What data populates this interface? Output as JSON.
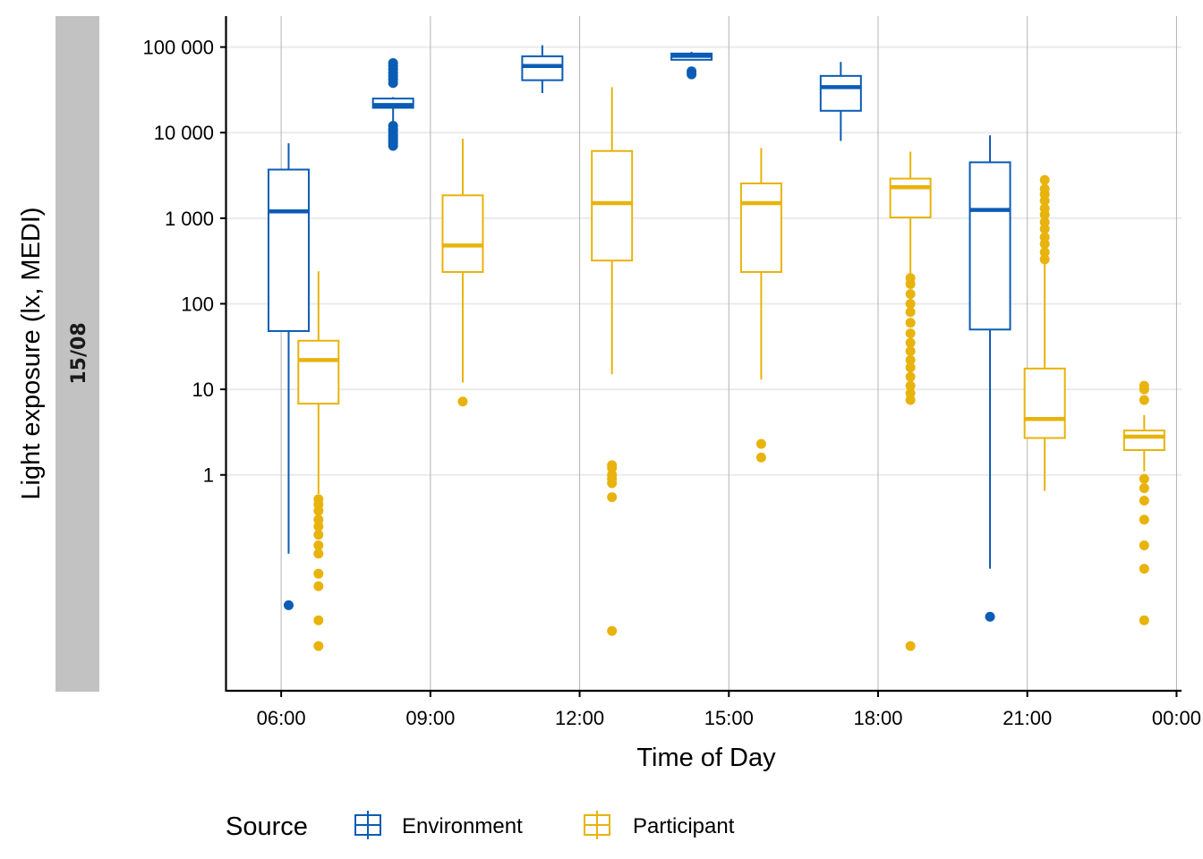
{
  "chart_data": {
    "type": "box",
    "facet_label": "15/08",
    "xlabel": "Time of Day",
    "ylabel": "Light exposure (lx, MEDI)",
    "y_scale": "log10",
    "ylim": [
      0.003,
      230000
    ],
    "y_ticks": [
      {
        "value": 1,
        "label": "1"
      },
      {
        "value": 10,
        "label": "10"
      },
      {
        "value": 100,
        "label": "100"
      },
      {
        "value": 1000,
        "label": "1 000"
      },
      {
        "value": 10000,
        "label": "10 000"
      },
      {
        "value": 100000,
        "label": "100 000"
      }
    ],
    "x_unit": "hours",
    "xlim": [
      4.9,
      24.1
    ],
    "x_ticks": [
      {
        "value": 6,
        "label": "06:00"
      },
      {
        "value": 9,
        "label": "09:00"
      },
      {
        "value": 12,
        "label": "12:00"
      },
      {
        "value": 15,
        "label": "15:00"
      },
      {
        "value": 18,
        "label": "18:00"
      },
      {
        "value": 21,
        "label": "21:00"
      },
      {
        "value": 24,
        "label": "00:00"
      }
    ],
    "legend": {
      "title": "Source",
      "position": "bottom"
    },
    "series": [
      {
        "name": "Environment",
        "color": "#0b5cb5",
        "boxes": [
          {
            "x": 6.15,
            "whisker_low": 0.12,
            "q1": 48,
            "median": 1200,
            "q3": 3700,
            "whisker_high": 7500,
            "outliers": [
              0.03
            ]
          },
          {
            "x": 8.25,
            "whisker_low": 7000,
            "q1": 19500,
            "median": 21000,
            "q3": 25000,
            "whisker_high": 26000,
            "outliers": [
              7000,
              7500,
              8000,
              8500,
              9000,
              9500,
              10500,
              11000,
              12000,
              38000,
              42000,
              46000,
              50000,
              55000,
              60000,
              65000
            ]
          },
          {
            "x": 11.25,
            "whisker_low": 29000,
            "q1": 41000,
            "median": 60000,
            "q3": 78000,
            "whisker_high": 105000,
            "outliers": []
          },
          {
            "x": 14.25,
            "whisker_low": 70000,
            "q1": 71000,
            "median": 79000,
            "q3": 84000,
            "whisker_high": 88000,
            "outliers": [
              48000,
              52000
            ]
          },
          {
            "x": 17.25,
            "whisker_low": 8000,
            "q1": 18000,
            "median": 34000,
            "q3": 46000,
            "whisker_high": 67000,
            "outliers": []
          },
          {
            "x": 20.25,
            "whisker_low": 0.08,
            "q1": 50,
            "median": 1250,
            "q3": 4500,
            "whisker_high": 9300,
            "outliers": [
              0.022
            ]
          }
        ]
      },
      {
        "name": "Participant",
        "color": "#e8b30c",
        "boxes": [
          {
            "x": 6.75,
            "whisker_low": 0.6,
            "q1": 6.8,
            "median": 22,
            "q3": 37,
            "whisker_high": 240,
            "outliers": [
              0.01,
              0.02,
              0.05,
              0.07,
              0.12,
              0.15,
              0.2,
              0.25,
              0.3,
              0.38,
              0.45,
              0.52
            ]
          },
          {
            "x": 9.65,
            "whisker_low": 12,
            "q1": 235,
            "median": 480,
            "q3": 1850,
            "whisker_high": 8500,
            "outliers": [
              7.2
            ]
          },
          {
            "x": 12.65,
            "whisker_low": 15,
            "q1": 320,
            "median": 1500,
            "q3": 6100,
            "whisker_high": 34000,
            "outliers": [
              0.015,
              0.55,
              0.8,
              0.9,
              1.0,
              1.2,
              1.3
            ]
          },
          {
            "x": 15.65,
            "whisker_low": 13,
            "q1": 235,
            "median": 1500,
            "q3": 2550,
            "whisker_high": 6600,
            "outliers": [
              1.6,
              2.3
            ]
          },
          {
            "x": 18.65,
            "whisker_low": 200,
            "q1": 1020,
            "median": 2300,
            "q3": 2900,
            "whisker_high": 6000,
            "outliers": [
              0.01,
              7.5,
              9,
              11,
              14,
              18,
              22,
              28,
              35,
              45,
              60,
              80,
              100,
              130,
              170,
              200
            ]
          },
          {
            "x": 21.35,
            "whisker_low": 0.65,
            "q1": 2.7,
            "median": 4.5,
            "q3": 17.5,
            "whisker_high": 300,
            "outliers": [
              330,
              400,
              500,
              600,
              750,
              900,
              1100,
              1300,
              1600,
              1900,
              2200,
              2800
            ]
          },
          {
            "x": 23.35,
            "whisker_low": 1.1,
            "q1": 1.95,
            "median": 2.8,
            "q3": 3.3,
            "whisker_high": 5,
            "outliers": [
              0.02,
              0.08,
              0.15,
              0.3,
              0.5,
              0.7,
              0.9,
              7.5,
              10,
              11
            ]
          }
        ]
      }
    ]
  }
}
